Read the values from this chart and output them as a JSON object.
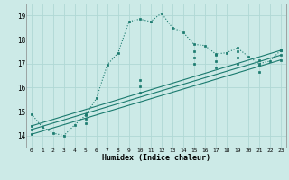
{
  "xlabel": "Humidex (Indice chaleur)",
  "bg_color": "#cceae7",
  "grid_color": "#b0d8d4",
  "line_color": "#1a7a6e",
  "xlim": [
    -0.5,
    23.5
  ],
  "ylim": [
    13.5,
    19.5
  ],
  "xticks": [
    0,
    1,
    2,
    3,
    4,
    5,
    6,
    7,
    8,
    9,
    10,
    11,
    12,
    13,
    14,
    15,
    16,
    17,
    18,
    19,
    20,
    21,
    22,
    23
  ],
  "yticks": [
    14,
    15,
    16,
    17,
    18,
    19
  ],
  "series1_x": [
    0,
    1,
    2,
    3,
    4,
    5,
    6,
    7,
    8,
    9,
    10,
    11,
    12,
    13,
    14,
    15,
    16,
    17,
    18,
    19,
    20,
    21,
    22,
    23
  ],
  "series1_y": [
    14.9,
    14.35,
    14.1,
    14.0,
    14.45,
    14.85,
    15.55,
    16.95,
    17.45,
    18.75,
    18.85,
    18.75,
    19.1,
    18.5,
    18.3,
    17.8,
    17.75,
    17.4,
    17.45,
    17.65,
    17.3,
    17.0,
    17.1,
    17.55
  ],
  "line2_x": [
    0,
    23
  ],
  "line2_y": [
    14.4,
    17.55
  ],
  "line3_x": [
    0,
    23
  ],
  "line3_y": [
    14.25,
    17.35
  ],
  "line4_x": [
    0,
    23
  ],
  "line4_y": [
    14.05,
    17.15
  ],
  "marker_x": [
    0,
    2,
    3,
    4,
    5,
    6,
    7,
    8,
    9,
    10,
    11,
    13,
    15,
    17,
    19,
    21,
    22,
    23
  ],
  "marker2_x": [
    0,
    5,
    10,
    15,
    17,
    19,
    21,
    23
  ],
  "marker2_y": [
    14.4,
    14.9,
    16.3,
    17.5,
    17.35,
    17.5,
    17.15,
    17.55
  ],
  "marker3_x": [
    0,
    5,
    10,
    15,
    17,
    19,
    21,
    23
  ],
  "marker3_y": [
    14.25,
    14.7,
    16.05,
    17.25,
    17.1,
    17.25,
    16.9,
    17.35
  ],
  "marker4_x": [
    0,
    5,
    10,
    15,
    17,
    19,
    21,
    23
  ],
  "marker4_y": [
    14.05,
    14.5,
    15.8,
    17.0,
    16.85,
    17.0,
    16.65,
    17.15
  ]
}
